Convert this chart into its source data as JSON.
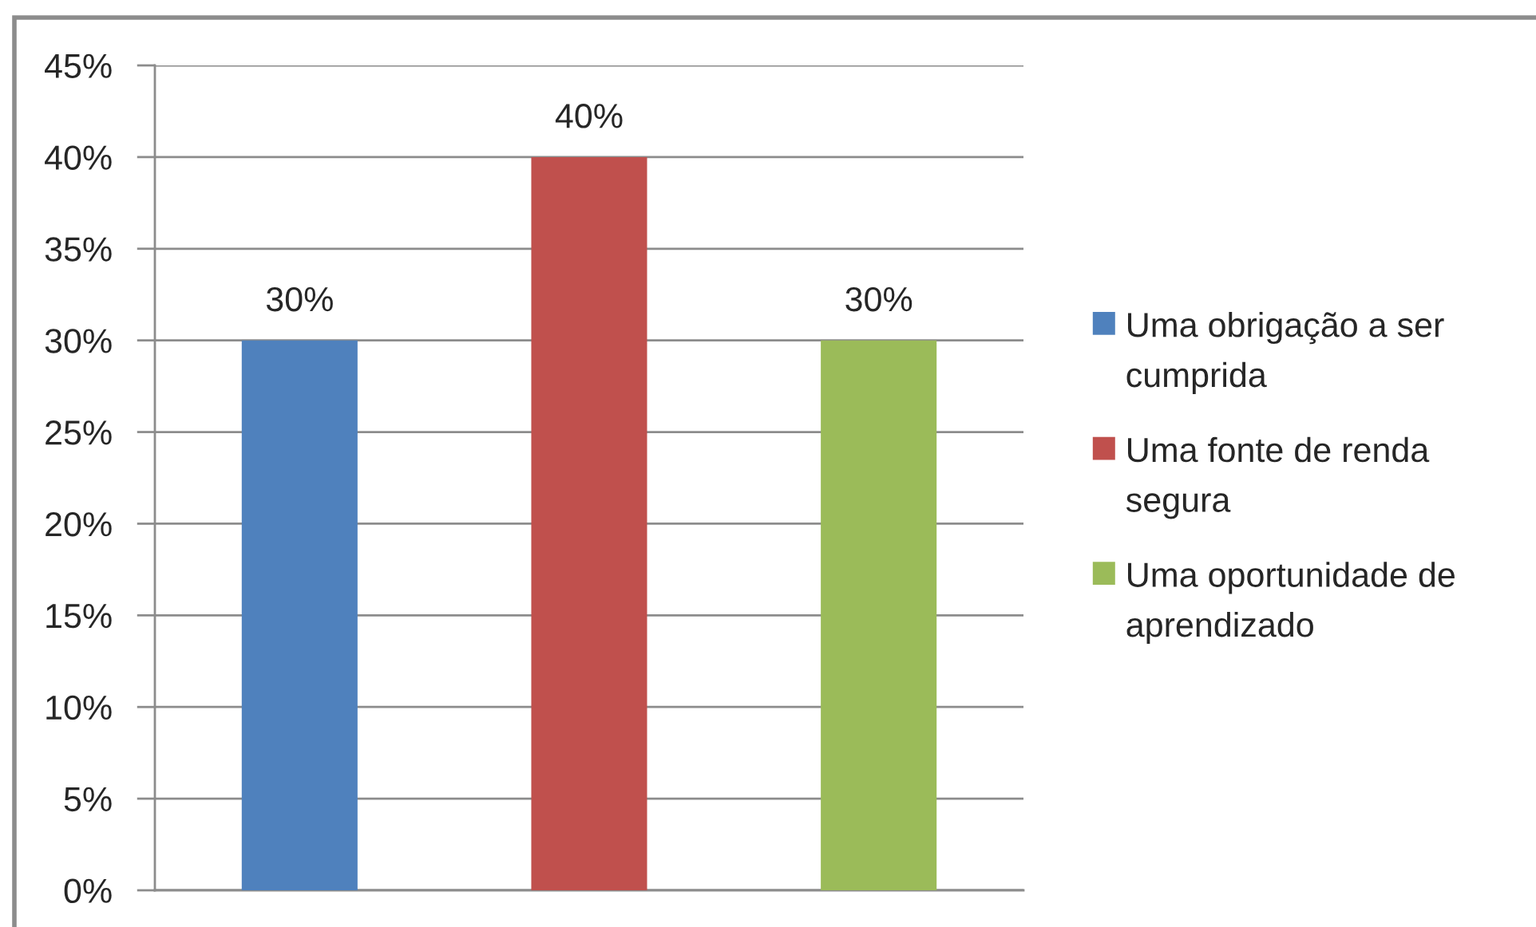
{
  "chart_data": {
    "type": "bar",
    "categories": [
      null,
      null,
      null
    ],
    "series": [
      {
        "name": "Uma obrigação a ser cumprida",
        "color": "#4f81bd",
        "values": [
          30,
          null,
          null
        ],
        "value_labels": [
          "30%",
          null,
          null
        ]
      },
      {
        "name": "Uma fonte de renda segura",
        "color": "#c0504d",
        "values": [
          null,
          40,
          null
        ],
        "value_labels": [
          null,
          "40%",
          null
        ]
      },
      {
        "name": "Uma oportunidade de aprendizado",
        "color": "#9bbb59",
        "values": [
          null,
          null,
          30
        ],
        "value_labels": [
          null,
          null,
          "30%"
        ]
      }
    ],
    "ylim": [
      0,
      45
    ],
    "yticks": [
      {
        "value": 0,
        "label": "0%"
      },
      {
        "value": 5,
        "label": "5%"
      },
      {
        "value": 10,
        "label": "10%"
      },
      {
        "value": 15,
        "label": "15%"
      },
      {
        "value": 20,
        "label": "20%"
      },
      {
        "value": 25,
        "label": "25%"
      },
      {
        "value": 30,
        "label": "30%"
      },
      {
        "value": 35,
        "label": "35%"
      },
      {
        "value": 40,
        "label": "40%"
      },
      {
        "value": 45,
        "label": "45%"
      }
    ],
    "grid": "y",
    "legend": "right",
    "tick_labels": "y"
  }
}
